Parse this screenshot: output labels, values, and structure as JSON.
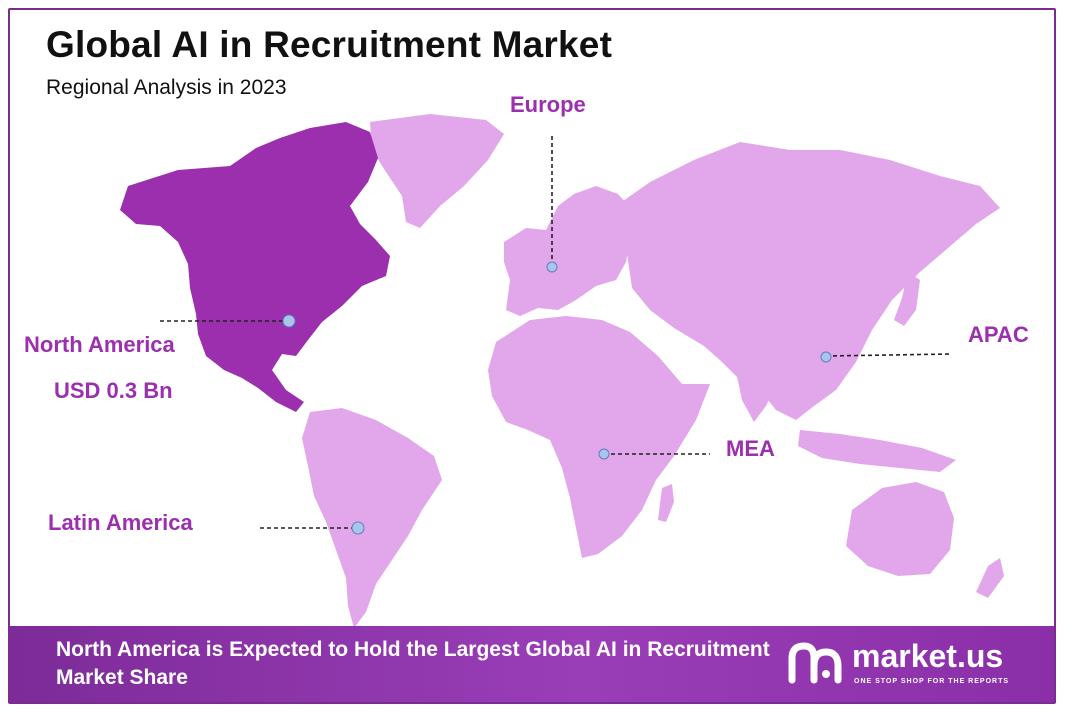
{
  "header": {
    "title": "Global AI in Recruitment Market",
    "subtitle": "Regional Analysis in 2023"
  },
  "regions": {
    "europe": {
      "label": "Europe"
    },
    "north_america": {
      "label": "North America",
      "value": "USD 0.3 Bn"
    },
    "apac": {
      "label": "APAC"
    },
    "mea": {
      "label": "MEA"
    },
    "latin_america": {
      "label": "Latin America"
    }
  },
  "footer": {
    "text": "North America is Expected to Hold the Largest Global AI in Recruitment  Market Share"
  },
  "brand": {
    "name": "market.us",
    "tagline": "ONE STOP SHOP FOR THE REPORTS"
  },
  "colors": {
    "highlight_region": "#9b2fae",
    "other_regions": "#e2a6ea",
    "label_text": "#9b2fae",
    "footer_background": "#8a34a8",
    "marker": "#a9c4ee"
  }
}
